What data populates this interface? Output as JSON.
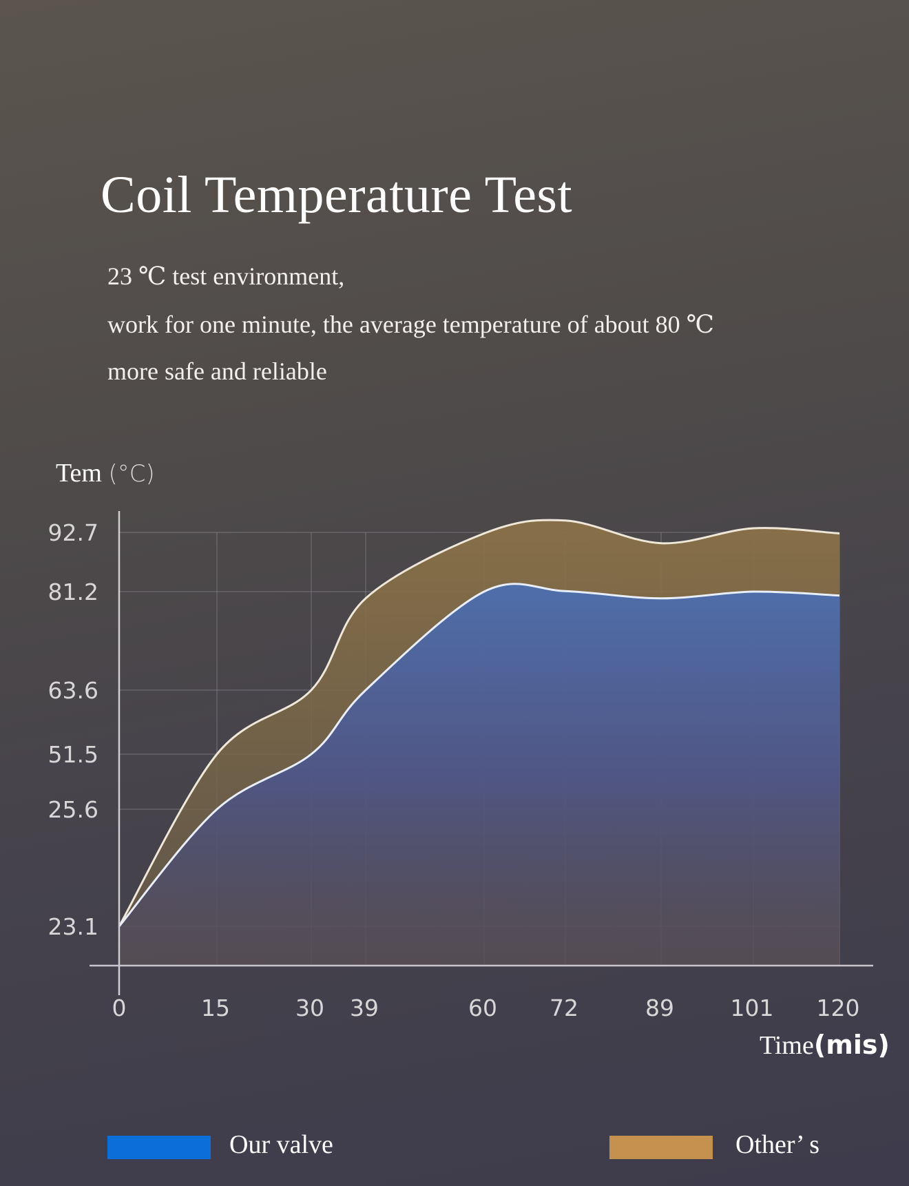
{
  "title": "Coil Temperature Test",
  "subtitle_lines": [
    "23 ℃ test environment,",
    "work for one minute, the average temperature of about 80 ℃",
    "more safe and reliable"
  ],
  "colors": {
    "ours": "#0b6fd9",
    "others": "#c4924e"
  },
  "chart_data": {
    "type": "area",
    "title": "Coil Temperature Test",
    "ylabel": "Tem",
    "ylabel_unit": "(°C)",
    "xlabel": "Time",
    "xlabel_unit": "(mis)",
    "x": [
      0,
      15,
      30,
      39,
      60,
      72,
      89,
      101,
      120
    ],
    "x_tick_labels": [
      "0",
      "15",
      "30",
      "39",
      "60",
      "72",
      "89",
      "101",
      "120"
    ],
    "y_tick_labels": [
      "92.7",
      "81.2",
      "63.6",
      "51.5",
      "25.6",
      "23.1"
    ],
    "y_ticks": [
      92.7,
      81.2,
      63.6,
      51.5,
      25.6,
      23.1
    ],
    "grid": true,
    "legend_position": "bottom",
    "series": [
      {
        "name": "Other’ s",
        "values": [
          23.1,
          51.5,
          63.6,
          80,
          92.5,
          95,
          90.6,
          93.5,
          92.5
        ]
      },
      {
        "name": "Our valve",
        "values": [
          23.1,
          25.6,
          51.5,
          63.6,
          81.2,
          81.3,
          80,
          81.2,
          80.5
        ]
      }
    ]
  }
}
